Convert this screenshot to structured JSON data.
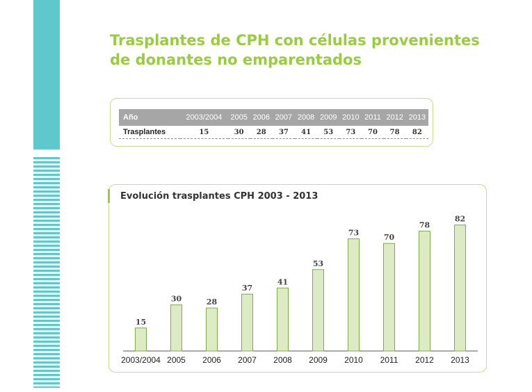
{
  "title": "Trasplantes de CPH con células provenientes de donantes no emparentados",
  "table": {
    "header_label": "Año",
    "row_label": "Trasplantes",
    "years": [
      "2003/2004",
      "2005",
      "2006",
      "2007",
      "2008",
      "2009",
      "2010",
      "2011",
      "2012",
      "2013"
    ],
    "values": [
      "15",
      "30",
      "28",
      "37",
      "41",
      "53",
      "73",
      "70",
      "78",
      "82"
    ]
  },
  "chart_data": {
    "type": "bar",
    "title": "Evolución trasplantes CPH 2003 - 2013",
    "categories": [
      "2003/2004",
      "2005",
      "2006",
      "2007",
      "2008",
      "2009",
      "2010",
      "2011",
      "2012",
      "2013"
    ],
    "values": [
      15,
      30,
      28,
      37,
      41,
      53,
      73,
      70,
      78,
      82
    ],
    "xlabel": "",
    "ylabel": "",
    "ylim": [
      0,
      90
    ],
    "grid": false,
    "legend": "none",
    "colors": {
      "bar_fill": "#dcebc3",
      "bar_stroke": "#7faa4a"
    }
  },
  "colors": {
    "accent_green": "#9acc3f",
    "box_border": "#c5de8f",
    "side_teal": "#5ec8cc",
    "table_header": "#a6a6a6"
  }
}
